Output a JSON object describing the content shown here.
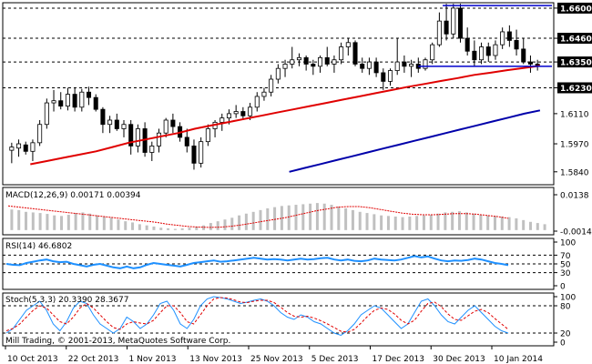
{
  "chart_data": [
    {
      "type": "candlestick",
      "title": "",
      "ylim": [
        1.578,
        1.6625
      ],
      "y_ticks": [
        "1.6600",
        "1.6460",
        "1.6350",
        "1.6230",
        "1.6110",
        "1.5970",
        "1.5840"
      ],
      "levels": [
        1.646,
        1.635,
        1.623
      ],
      "price_highlight": "1.6350",
      "x_ticks": [
        "10 Oct 2013",
        "22 Oct 2013",
        "1 Nov 2013",
        "13 Nov 2013",
        "25 Nov 2013",
        "5 Dec 2013",
        "17 Dec 2013",
        "30 Dec 2013",
        "10 Jan 2014"
      ],
      "ohlc": [
        [
          1.594,
          1.5975,
          1.588,
          1.5955
        ],
        [
          1.595,
          1.599,
          1.591,
          1.597
        ],
        [
          1.5965,
          1.598,
          1.592,
          1.5935
        ],
        [
          1.5935,
          1.599,
          1.589,
          1.5975
        ],
        [
          1.5975,
          1.608,
          1.596,
          1.606
        ],
        [
          1.606,
          1.618,
          1.604,
          1.616
        ],
        [
          1.616,
          1.622,
          1.612,
          1.617
        ],
        [
          1.617,
          1.621,
          1.613,
          1.6145
        ],
        [
          1.6145,
          1.623,
          1.6125,
          1.62
        ],
        [
          1.62,
          1.623,
          1.612,
          1.614
        ],
        [
          1.614,
          1.6225,
          1.612,
          1.621
        ],
        [
          1.621,
          1.6235,
          1.615,
          1.6185
        ],
        [
          1.6185,
          1.62,
          1.612,
          1.613
        ],
        [
          1.613,
          1.614,
          1.602,
          1.606
        ],
        [
          1.606,
          1.61,
          1.602,
          1.608
        ],
        [
          1.608,
          1.611,
          1.603,
          1.604
        ],
        [
          1.604,
          1.608,
          1.6,
          1.606
        ],
        [
          1.606,
          1.608,
          1.592,
          1.596
        ],
        [
          1.596,
          1.606,
          1.593,
          1.604
        ],
        [
          1.604,
          1.607,
          1.591,
          1.593
        ],
        [
          1.593,
          1.598,
          1.589,
          1.596
        ],
        [
          1.596,
          1.604,
          1.593,
          1.602
        ],
        [
          1.602,
          1.609,
          1.6,
          1.608
        ],
        [
          1.608,
          1.611,
          1.602,
          1.605
        ],
        [
          1.605,
          1.607,
          1.598,
          1.6
        ],
        [
          1.6,
          1.604,
          1.593,
          1.596
        ],
        [
          1.596,
          1.599,
          1.585,
          1.588
        ],
        [
          1.588,
          1.6,
          1.586,
          1.598
        ],
        [
          1.598,
          1.606,
          1.596,
          1.604
        ],
        [
          1.604,
          1.608,
          1.6,
          1.607
        ],
        [
          1.607,
          1.611,
          1.603,
          1.609
        ],
        [
          1.609,
          1.613,
          1.606,
          1.611
        ],
        [
          1.611,
          1.615,
          1.609,
          1.612
        ],
        [
          1.612,
          1.614,
          1.608,
          1.61
        ],
        [
          1.61,
          1.616,
          1.608,
          1.614
        ],
        [
          1.614,
          1.621,
          1.612,
          1.619
        ],
        [
          1.619,
          1.623,
          1.617,
          1.621
        ],
        [
          1.621,
          1.629,
          1.619,
          1.627
        ],
        [
          1.627,
          1.634,
          1.625,
          1.632
        ],
        [
          1.632,
          1.636,
          1.628,
          1.634
        ],
        [
          1.634,
          1.642,
          1.632,
          1.636
        ],
        [
          1.636,
          1.639,
          1.633,
          1.637
        ],
        [
          1.637,
          1.638,
          1.631,
          1.634
        ],
        [
          1.634,
          1.636,
          1.629,
          1.633
        ],
        [
          1.633,
          1.638,
          1.63,
          1.637
        ],
        [
          1.637,
          1.642,
          1.633,
          1.634
        ],
        [
          1.634,
          1.638,
          1.63,
          1.636
        ],
        [
          1.636,
          1.644,
          1.634,
          1.642
        ],
        [
          1.642,
          1.646,
          1.638,
          1.644
        ],
        [
          1.644,
          1.645,
          1.633,
          1.634
        ],
        [
          1.634,
          1.637,
          1.63,
          1.632
        ],
        [
          1.632,
          1.637,
          1.629,
          1.635
        ],
        [
          1.635,
          1.637,
          1.628,
          1.63
        ],
        [
          1.63,
          1.632,
          1.622,
          1.626
        ],
        [
          1.626,
          1.632,
          1.624,
          1.631
        ],
        [
          1.631,
          1.646,
          1.629,
          1.635
        ],
        [
          1.635,
          1.638,
          1.63,
          1.633
        ],
        [
          1.633,
          1.636,
          1.628,
          1.634
        ],
        [
          1.634,
          1.637,
          1.63,
          1.632
        ],
        [
          1.632,
          1.637,
          1.631,
          1.636
        ],
        [
          1.636,
          1.644,
          1.634,
          1.643
        ],
        [
          1.643,
          1.658,
          1.642,
          1.654
        ],
        [
          1.654,
          1.662,
          1.645,
          1.648
        ],
        [
          1.648,
          1.662,
          1.646,
          1.66
        ],
        [
          1.66,
          1.662,
          1.644,
          1.646
        ],
        [
          1.646,
          1.651,
          1.638,
          1.64
        ],
        [
          1.64,
          1.645,
          1.633,
          1.636
        ],
        [
          1.636,
          1.644,
          1.634,
          1.642
        ],
        [
          1.642,
          1.644,
          1.635,
          1.638
        ],
        [
          1.638,
          1.645,
          1.636,
          1.643
        ],
        [
          1.643,
          1.651,
          1.641,
          1.649
        ],
        [
          1.649,
          1.652,
          1.642,
          1.645
        ],
        [
          1.645,
          1.65,
          1.638,
          1.641
        ],
        [
          1.641,
          1.646,
          1.634,
          1.635
        ],
        [
          1.635,
          1.638,
          1.63,
          1.634
        ],
        [
          1.634,
          1.636,
          1.631,
          1.633
        ]
      ],
      "ma_red": [
        1.5875,
        1.589,
        1.5905,
        1.592,
        1.5935,
        1.5955,
        1.5975,
        1.599,
        1.6005,
        1.602,
        1.604,
        1.6055,
        1.607,
        1.6085,
        1.61,
        1.6115,
        1.613,
        1.6145,
        1.616,
        1.6175,
        1.619,
        1.6205,
        1.622,
        1.6235,
        1.6248,
        1.6262,
        1.6275,
        1.629,
        1.63,
        1.6312,
        1.6322,
        1.6332
      ],
      "ma_red_x0": 0.05,
      "ma_red_x1": 0.975,
      "ma_blue": [
        1.584,
        1.5858,
        1.5876,
        1.5894,
        1.5912,
        1.593,
        1.5948,
        1.5966,
        1.5984,
        1.6002,
        1.602,
        1.6038,
        1.6056,
        1.6074,
        1.6092,
        1.611,
        1.6125
      ],
      "ma_blue_x0": 0.52,
      "ma_blue_x1": 0.975,
      "channel_top": 1.6612,
      "channel_bottom": 1.633
    },
    {
      "type": "bar",
      "label": "MACD(12,26,9) 0.00171 0.00394",
      "y_ticks": [
        "0.0138",
        "-0.00142"
      ],
      "ylim": [
        -0.0016,
        0.0145
      ],
      "bars": [
        0.007,
        0.0068,
        0.0062,
        0.006,
        0.0058,
        0.0055,
        0.005,
        0.0048,
        0.0052,
        0.0058,
        0.006,
        0.0056,
        0.005,
        0.0046,
        0.0042,
        0.0036,
        0.003,
        0.0026,
        0.002,
        0.0016,
        0.0012,
        0.0008,
        0.0006,
        0.0004,
        0.0006,
        0.0008,
        0.0012,
        0.0016,
        0.0024,
        0.003,
        0.0036,
        0.0042,
        0.005,
        0.0056,
        0.0062,
        0.0068,
        0.0074,
        0.0078,
        0.0082,
        0.0084,
        0.0086,
        0.0088,
        0.009,
        0.0092,
        0.009,
        0.0086,
        0.008,
        0.0074,
        0.0068,
        0.0062,
        0.0058,
        0.0054,
        0.005,
        0.0048,
        0.0046,
        0.0044,
        0.0046,
        0.0048,
        0.005,
        0.0052,
        0.0056,
        0.006,
        0.0062,
        0.0064,
        0.006,
        0.0056,
        0.0052,
        0.005,
        0.0048,
        0.0046,
        0.0044,
        0.004,
        0.0034,
        0.0028,
        0.0024,
        0.002
      ],
      "signal": [
        0.0082,
        0.0078,
        0.0074,
        0.007,
        0.0066,
        0.0062,
        0.0058,
        0.0054,
        0.005,
        0.0046,
        0.0042,
        0.0038,
        0.0034,
        0.003,
        0.0026,
        0.002,
        0.0016,
        0.0012,
        0.001,
        0.0009,
        0.001,
        0.0013,
        0.0018,
        0.0024,
        0.003,
        0.0036,
        0.0042,
        0.005,
        0.0058,
        0.0066,
        0.0072,
        0.0078,
        0.008,
        0.008,
        0.0076,
        0.007,
        0.0064,
        0.0058,
        0.0054,
        0.0052,
        0.0052,
        0.0054,
        0.0056,
        0.0056,
        0.0054,
        0.005,
        0.0046,
        0.004
      ]
    },
    {
      "type": "line",
      "label": "RSI(14) 46.6802",
      "y_ticks": [
        "100",
        "70",
        "50",
        "30",
        "0"
      ],
      "ylim": [
        0,
        100
      ],
      "levels": [
        70,
        50,
        30
      ],
      "values": [
        50,
        48,
        47,
        52,
        55,
        58,
        60,
        56,
        54,
        55,
        50,
        47,
        44,
        48,
        50,
        46,
        42,
        40,
        44,
        40,
        42,
        48,
        52,
        50,
        48,
        46,
        44,
        48,
        52,
        54,
        56,
        58,
        55,
        56,
        58,
        60,
        62,
        64,
        62,
        60,
        61,
        60,
        58,
        60,
        62,
        60,
        61,
        63,
        64,
        60,
        58,
        60,
        57,
        56,
        58,
        62,
        60,
        59,
        58,
        60,
        64,
        68,
        65,
        67,
        62,
        58,
        56,
        58,
        57,
        59,
        62,
        60,
        56,
        52,
        50,
        47
      ]
    },
    {
      "type": "line",
      "label": "Stoch(5,3,3) 20.3390 28.3677",
      "y_ticks": [
        "100",
        "80",
        "20",
        "0"
      ],
      "ylim": [
        0,
        100
      ],
      "levels": [
        80,
        20
      ],
      "main": [
        20,
        30,
        50,
        70,
        80,
        90,
        70,
        40,
        25,
        45,
        75,
        90,
        85,
        60,
        40,
        30,
        20,
        30,
        55,
        45,
        30,
        40,
        60,
        85,
        90,
        70,
        40,
        30,
        50,
        80,
        95,
        100,
        98,
        95,
        90,
        85,
        88,
        92,
        95,
        90,
        80,
        65,
        55,
        50,
        60,
        55,
        45,
        40,
        30,
        20,
        15,
        25,
        40,
        60,
        70,
        80,
        75,
        60,
        45,
        30,
        40,
        65,
        90,
        95,
        80,
        60,
        45,
        40,
        55,
        70,
        80,
        65,
        50,
        35,
        25,
        20
      ],
      "signal": [
        25,
        30,
        40,
        55,
        70,
        80,
        75,
        60,
        45,
        40,
        55,
        75,
        85,
        75,
        60,
        45,
        32,
        28,
        40,
        45,
        42,
        40,
        48,
        65,
        80,
        80,
        65,
        45,
        40,
        60,
        80,
        95,
        98,
        97,
        93,
        88,
        87,
        90,
        92,
        92,
        87,
        77,
        65,
        57,
        55,
        57,
        53,
        47,
        40,
        32,
        24,
        22,
        28,
        42,
        57,
        70,
        75,
        72,
        62,
        48,
        40,
        48,
        68,
        85,
        88,
        78,
        62,
        50,
        48,
        58,
        68,
        72,
        65,
        52,
        40,
        28
      ]
    }
  ],
  "x_axis": [
    "10 Oct 2013",
    "22 Oct 2013",
    "1 Nov 2013",
    "13 Nov 2013",
    "25 Nov 2013",
    "5 Dec 2013",
    "17 Dec 2013",
    "30 Dec 2013",
    "10 Jan 2014"
  ],
  "footer": "Mill Trading, © 2001-2013, MetaQuotes Software Corp.",
  "colors": {
    "bull": "#ffffff",
    "bear": "#000000",
    "ma_red": "#e00000",
    "ma_blue": "#0000aa",
    "channel": "#0000cc",
    "hist": "#c0c0c0",
    "macd_signal": "#e00000",
    "rsi": "#1e90ff",
    "stoch_main": "#1e90ff",
    "stoch_signal": "#e00000",
    "grid": "#000000",
    "highlight_bg": "#000000"
  }
}
